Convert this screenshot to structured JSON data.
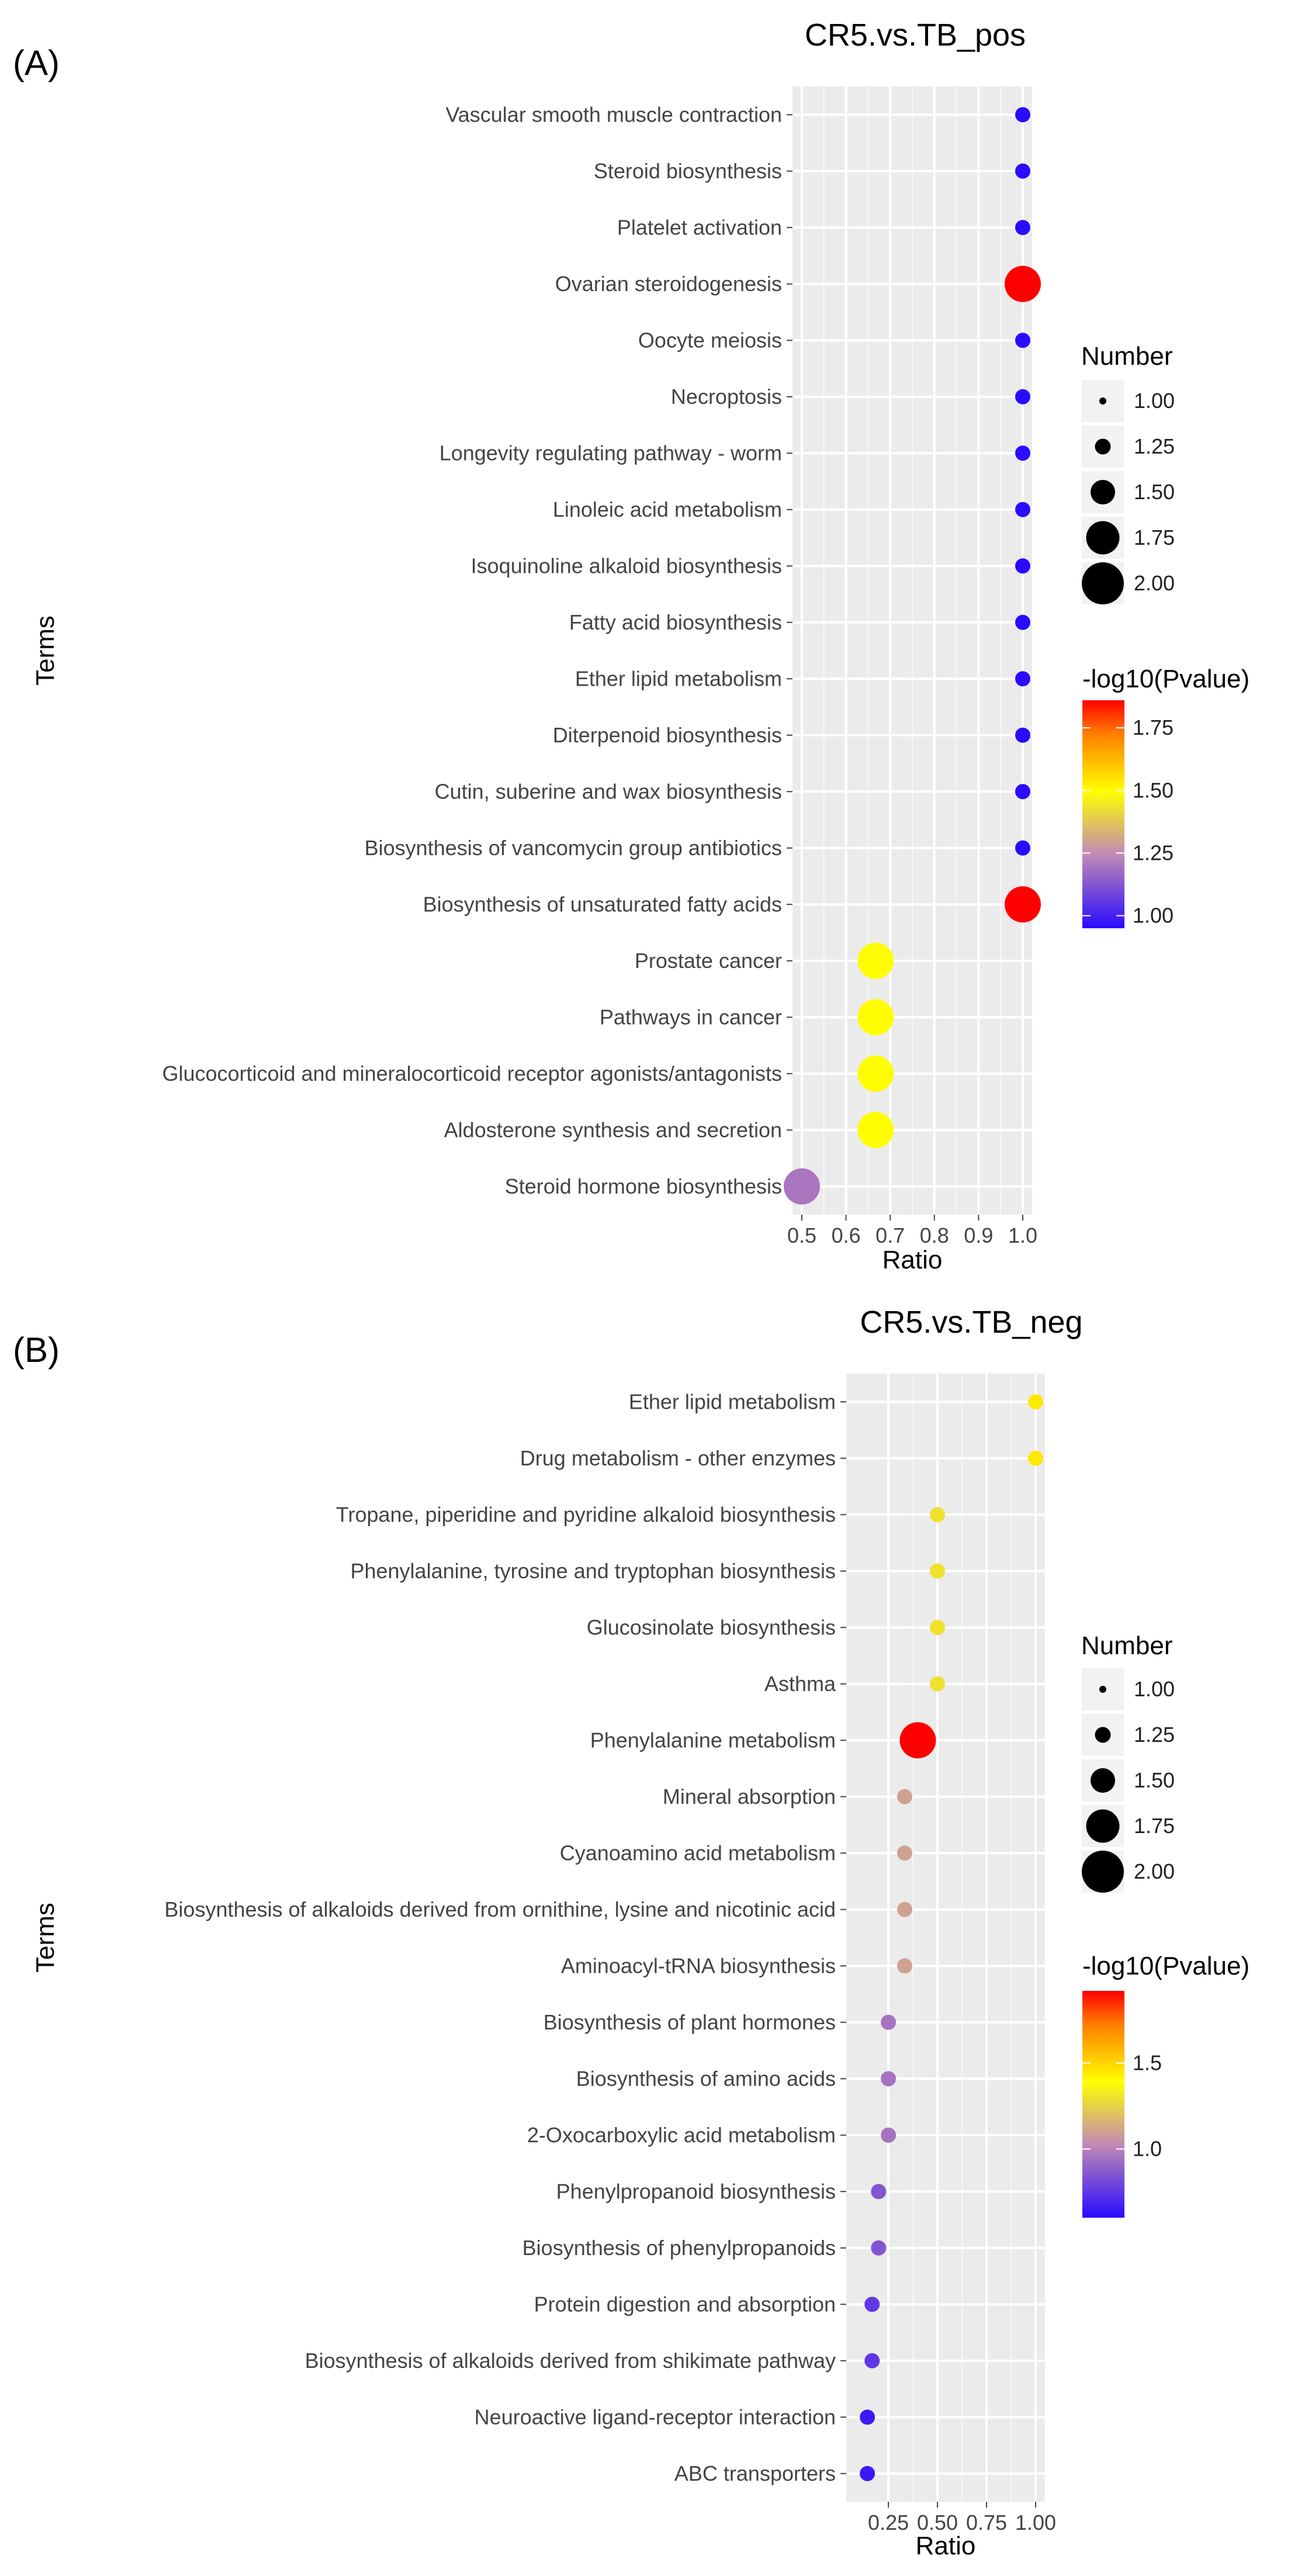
{
  "chart_data": [
    {
      "type": "scatter",
      "panel_label": "(A)",
      "title": "CR5.vs.TB_pos",
      "xlabel": "Ratio",
      "ylabel": "Terms",
      "xlim": [
        0.5,
        1.0
      ],
      "x_ticks": [
        "0.5",
        "0.6",
        "0.7",
        "0.8",
        "0.9",
        "1.0"
      ],
      "x_tick_values": [
        0.5,
        0.6,
        0.7,
        0.8,
        0.9,
        1.0
      ],
      "size_legend": {
        "title": "Number",
        "values": [
          "1.00",
          "1.25",
          "1.50",
          "1.75",
          "2.00"
        ]
      },
      "color_legend": {
        "title": "-log10(Pvalue)",
        "ticks": [
          "1.00",
          "1.25",
          "1.50",
          "1.75"
        ],
        "tick_values": [
          1.0,
          1.25,
          1.5,
          1.75
        ],
        "range": [
          0.95,
          1.86
        ]
      },
      "terms": [
        "Vascular smooth muscle contraction",
        "Steroid biosynthesis",
        "Platelet activation",
        "Ovarian steroidogenesis",
        "Oocyte meiosis",
        "Necroptosis",
        "Longevity regulating pathway - worm",
        "Linoleic acid metabolism",
        "Isoquinoline alkaloid biosynthesis",
        "Fatty acid biosynthesis",
        "Ether lipid metabolism",
        "Diterpenoid biosynthesis",
        "Cutin, suberine and wax biosynthesis",
        "Biosynthesis of vancomycin group antibiotics",
        "Biosynthesis of unsaturated fatty acids",
        "Prostate cancer",
        "Pathways in cancer",
        "Glucocorticoid and mineralocorticoid receptor agonists/antagonists",
        "Aldosterone synthesis and secretion",
        "Steroid hormone biosynthesis"
      ],
      "ratio": [
        1.0,
        1.0,
        1.0,
        1.0,
        1.0,
        1.0,
        1.0,
        1.0,
        1.0,
        1.0,
        1.0,
        1.0,
        1.0,
        1.0,
        1.0,
        0.667,
        0.667,
        0.667,
        0.667,
        0.5
      ],
      "number": [
        1,
        1,
        1,
        2,
        1,
        1,
        1,
        1,
        1,
        1,
        1,
        1,
        1,
        1,
        2,
        2,
        2,
        2,
        2,
        2
      ],
      "neg_log10_p": [
        0.95,
        0.95,
        0.95,
        1.86,
        0.95,
        0.95,
        0.95,
        0.95,
        0.95,
        0.95,
        0.95,
        0.95,
        0.95,
        0.95,
        1.86,
        1.5,
        1.5,
        1.5,
        1.5,
        1.2
      ]
    },
    {
      "type": "scatter",
      "panel_label": "(B)",
      "title": "CR5.vs.TB_neg",
      "xlabel": "Ratio",
      "ylabel": "Terms",
      "xlim": [
        0.083,
        1.0
      ],
      "x_ticks": [
        "0.25",
        "0.50",
        "0.75",
        "1.00"
      ],
      "x_tick_values": [
        0.25,
        0.5,
        0.75,
        1.0
      ],
      "size_legend": {
        "title": "Number",
        "values": [
          "1.00",
          "1.25",
          "1.50",
          "1.75",
          "2.00"
        ]
      },
      "color_legend": {
        "title": "-log10(Pvalue)",
        "ticks": [
          "1.0",
          "1.5"
        ],
        "tick_values": [
          1.0,
          1.5
        ],
        "range": [
          0.6,
          1.92
        ]
      },
      "terms": [
        "Ether lipid metabolism",
        "Drug metabolism - other enzymes",
        "Tropane, piperidine and pyridine alkaloid biosynthesis",
        "Phenylalanine, tyrosine and tryptophan biosynthesis",
        "Glucosinolate biosynthesis",
        "Asthma",
        "Phenylalanine metabolism",
        "Mineral absorption",
        "Cyanoamino acid metabolism",
        "Biosynthesis of alkaloids derived from ornithine, lysine and nicotinic acid",
        "Aminoacyl-tRNA biosynthesis",
        "Biosynthesis of plant hormones",
        "Biosynthesis of amino acids",
        "2-Oxocarboxylic acid metabolism",
        "Phenylpropanoid biosynthesis",
        "Biosynthesis of phenylpropanoids",
        "Protein digestion and absorption",
        "Biosynthesis of alkaloids derived from shikimate pathway",
        "Neuroactive ligand-receptor interaction",
        "ABC transporters"
      ],
      "ratio": [
        1.0,
        1.0,
        0.5,
        0.5,
        0.5,
        0.5,
        0.4,
        0.333,
        0.333,
        0.333,
        0.333,
        0.25,
        0.25,
        0.25,
        0.2,
        0.2,
        0.167,
        0.167,
        0.143,
        0.143
      ],
      "number": [
        1,
        1,
        1,
        1,
        1,
        1,
        2,
        1,
        1,
        1,
        1,
        1,
        1,
        1,
        1,
        1,
        1,
        1,
        1,
        1
      ],
      "neg_log10_p": [
        1.45,
        1.45,
        1.3,
        1.3,
        1.3,
        1.3,
        1.92,
        1.1,
        1.1,
        1.1,
        1.1,
        0.95,
        0.95,
        0.95,
        0.85,
        0.85,
        0.75,
        0.75,
        0.65,
        0.65
      ]
    }
  ]
}
